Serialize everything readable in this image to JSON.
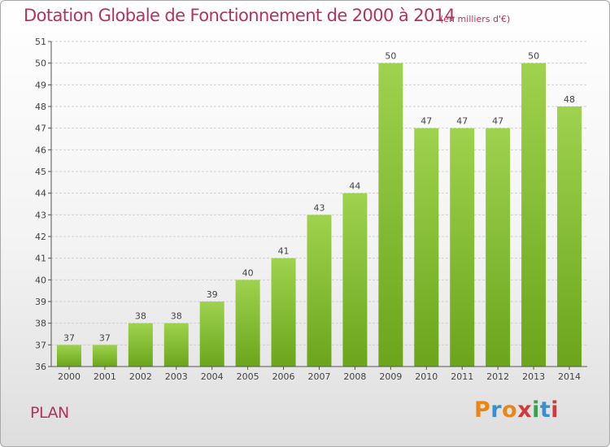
{
  "header": {
    "title": "Dotation Globale de Fonctionnement de 2000 à 2014",
    "subtitle": "(en milliers d'€)"
  },
  "footer": {
    "commune": "PLAN",
    "logo_text": "Proxiti"
  },
  "colors": {
    "title": "#b5325c",
    "bar_light": "#9fd24e",
    "bar_dark": "#6ba51c",
    "gridline": "#d0d0d0",
    "axis": "#555555",
    "logo_letters": [
      "#e8861a",
      "#3a8fd0",
      "#e8861a",
      "#d03a3a",
      "#3aa04a",
      "#3a8fd0",
      "#d03a3a"
    ]
  },
  "chart_data": {
    "type": "bar",
    "title": "Dotation Globale de Fonctionnement de 2000 à 2014",
    "subtitle": "(en milliers d'€)",
    "xlabel": "",
    "ylabel": "",
    "categories": [
      "2000",
      "2001",
      "2002",
      "2003",
      "2004",
      "2005",
      "2006",
      "2007",
      "2008",
      "2009",
      "2010",
      "2011",
      "2012",
      "2013",
      "2014"
    ],
    "values": [
      37,
      37,
      38,
      38,
      39,
      40,
      41,
      43,
      44,
      50,
      47,
      47,
      47,
      50,
      48
    ],
    "ylim": [
      36,
      51
    ],
    "yticks": [
      36,
      37,
      38,
      39,
      40,
      41,
      42,
      43,
      44,
      45,
      46,
      47,
      48,
      49,
      50,
      51
    ],
    "grid": true,
    "data_labels": true
  }
}
